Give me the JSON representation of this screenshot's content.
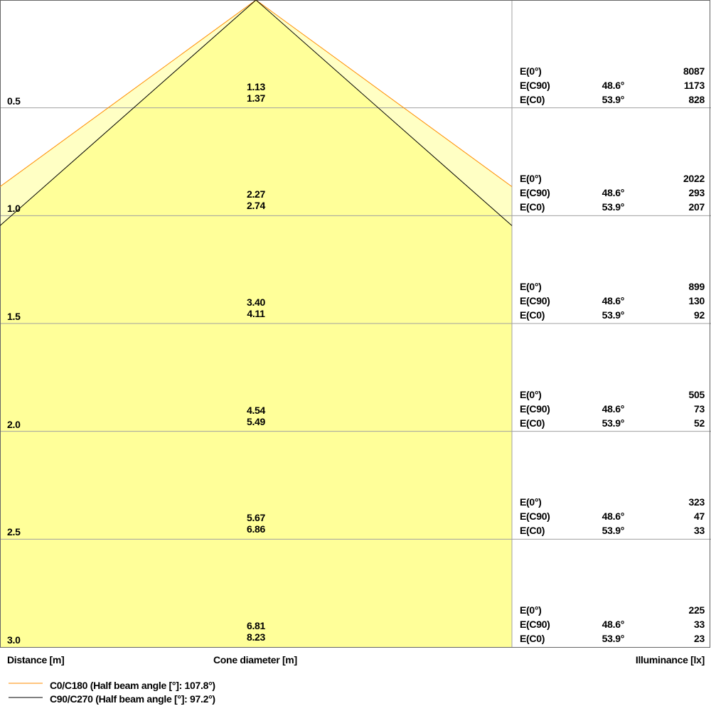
{
  "chart_data": {
    "type": "cone-diagram",
    "xlabel": "Distance [m]",
    "center_label": "Cone diameter [m]",
    "ylabel": "Illuminance [lx]",
    "colors": {
      "c0": "#ff8c00",
      "c90": "#000000",
      "fill": "#ffff99",
      "fill_light": "#ffffc4",
      "grid": "#a0a0a0"
    },
    "series": [
      {
        "name": "C0/C180 (Half beam angle [°]: 107.8°)",
        "half_angle_deg": 107.8,
        "color": "#ff8c00"
      },
      {
        "name": "C90/C270 (Half beam angle [°]: 97.2°)",
        "half_angle_deg": 97.2,
        "color": "#000000"
      }
    ],
    "row_labels": {
      "e0": "E(0°)",
      "ec90": "E(C90)",
      "ec0": "E(C0)",
      "angle_c90": "48.6°",
      "angle_c0": "53.9°"
    },
    "rows": [
      {
        "distance": "0.5",
        "diam_c90": "1.13",
        "diam_c0": "1.37",
        "e0": "8087",
        "ec90": "1173",
        "ec0": "828"
      },
      {
        "distance": "1.0",
        "diam_c90": "2.27",
        "diam_c0": "2.74",
        "e0": "2022",
        "ec90": "293",
        "ec0": "207"
      },
      {
        "distance": "1.5",
        "diam_c90": "3.40",
        "diam_c0": "4.11",
        "e0": "899",
        "ec90": "130",
        "ec0": "92"
      },
      {
        "distance": "2.0",
        "diam_c90": "4.54",
        "diam_c0": "5.49",
        "e0": "505",
        "ec90": "73",
        "ec0": "52"
      },
      {
        "distance": "2.5",
        "diam_c90": "5.67",
        "diam_c0": "6.86",
        "e0": "323",
        "ec90": "47",
        "ec0": "33"
      },
      {
        "distance": "3.0",
        "diam_c90": "6.81",
        "diam_c0": "8.23",
        "e0": "225",
        "ec90": "33",
        "ec0": "23"
      }
    ]
  }
}
